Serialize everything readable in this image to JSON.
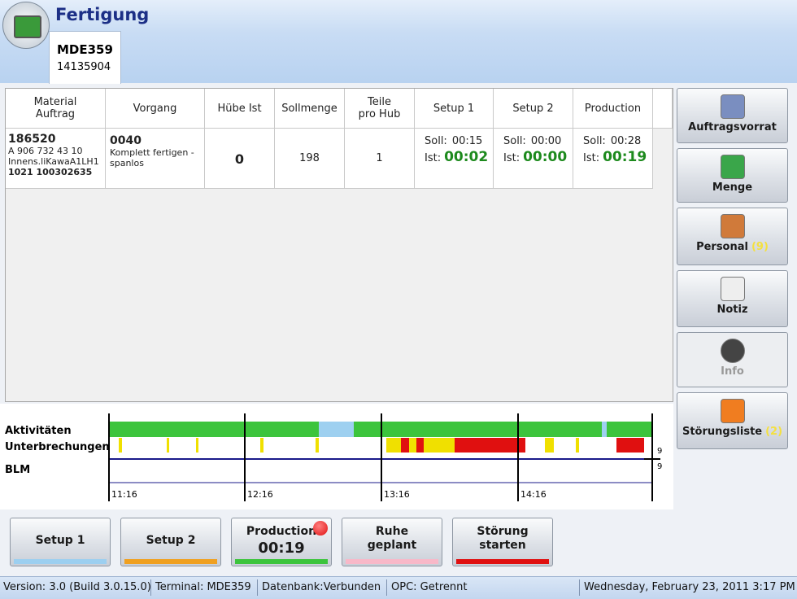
{
  "header": {
    "title": "Fertigung"
  },
  "tab": {
    "title": "MDE359",
    "subtitle": "14135904"
  },
  "table": {
    "columns": [
      [
        "Material",
        "Auftrag"
      ],
      [
        "Vorgang"
      ],
      [
        "Hübe Ist"
      ],
      [
        "Sollmenge"
      ],
      [
        "Teile",
        "pro Hub"
      ],
      [
        "Setup 1"
      ],
      [
        "Setup 2"
      ],
      [
        "Production"
      ]
    ],
    "row": {
      "material": [
        "186520",
        "A 906 732 43 10",
        "Innens.liKawaA1LH1",
        "1021 100302635"
      ],
      "vorgang": [
        "0040",
        "Komplett fertigen - spanlos"
      ],
      "huebe_ist": "0",
      "sollmenge": "198",
      "teile_pro_hub": "1",
      "times": [
        {
          "soll_label": "Soll:",
          "soll": "00:15",
          "ist_label": "Ist:",
          "ist": "00:02"
        },
        {
          "soll_label": "Soll:",
          "soll": "00:00",
          "ist_label": "Ist:",
          "ist": "00:00"
        },
        {
          "soll_label": "Soll:",
          "soll": "00:28",
          "ist_label": "Ist:",
          "ist": "00:19"
        }
      ]
    }
  },
  "side_buttons": [
    {
      "label": "Auftragsvorrat"
    },
    {
      "label": "Menge"
    },
    {
      "label": "Personal",
      "count": "(9)"
    },
    {
      "label": "Notiz"
    },
    {
      "label": "Info"
    },
    {
      "label": "Störungsliste",
      "count": "(2)"
    }
  ],
  "timeline": {
    "row_labels": [
      "Aktivitäten",
      "Unterbrechungen",
      "BLM"
    ],
    "markers": [
      "9",
      "9"
    ],
    "times": [
      "11:16",
      "12:16",
      "13:16",
      "14:16"
    ]
  },
  "bottom_buttons": [
    {
      "label": [
        "Setup 1"
      ]
    },
    {
      "label": [
        "Setup 2"
      ]
    },
    {
      "label": [
        "Production",
        "00:19"
      ]
    },
    {
      "label": [
        "Ruhe",
        "geplant"
      ]
    },
    {
      "label": [
        "Störung",
        "starten"
      ]
    }
  ],
  "status_bar": [
    "Version: 3.0 (Build 3.0.15.0)",
    "Terminal: MDE359",
    "Datenbank:Verbunden",
    "OPC: Getrennt",
    "Wednesday, February 23, 2011 3:17 PM"
  ]
}
